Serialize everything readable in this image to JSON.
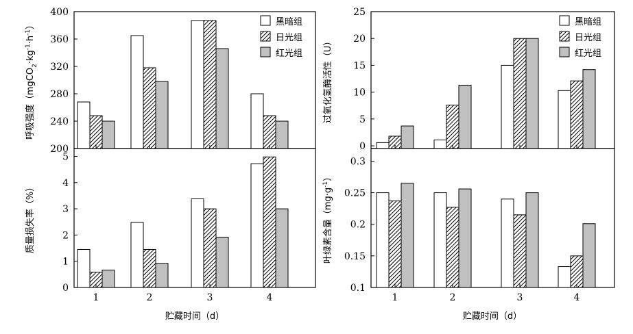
{
  "colors": {
    "dark_group": "#ffffff",
    "sunlight_group": "hatched",
    "red_group": "#c0c0c0",
    "axis": "#000000"
  },
  "legend": [
    "黑暗组",
    "日光组",
    "红光组"
  ],
  "shared_xlabel": "贮藏时间（d）",
  "chart_data": [
    {
      "type": "bar",
      "panel": "top-left",
      "categories": [
        "1",
        "2",
        "3",
        "4"
      ],
      "ylabel_main": "呼吸强度（mgCO",
      "ylabel_sub": "2",
      "ylabel_tail": "·kg",
      "ylabel_exp1": "-1",
      "ylabel_mid": "·h",
      "ylabel_exp2": "-1",
      "ylabel_close": "）",
      "ylim": [
        200,
        400
      ],
      "yticks": [
        "200",
        "240",
        "280",
        "320",
        "360",
        "400"
      ],
      "legend_position": "top-right",
      "series": [
        {
          "name": "黑暗组",
          "values": [
            268,
            365,
            387,
            280
          ]
        },
        {
          "name": "日光组",
          "values": [
            248,
            318,
            387,
            248
          ]
        },
        {
          "name": "红光组",
          "values": [
            240,
            298,
            346,
            240
          ]
        }
      ]
    },
    {
      "type": "bar",
      "panel": "top-right",
      "categories": [
        "1",
        "2",
        "3",
        "4"
      ],
      "ylabel": "过氧化氢酶活性（U）",
      "ylim": [
        -0.5,
        25
      ],
      "yticks": [
        "0",
        "5",
        "10",
        "15",
        "20",
        "25"
      ],
      "legend_position": "top-right",
      "series": [
        {
          "name": "黑暗组",
          "values": [
            0.6,
            1.1,
            15,
            10.3
          ]
        },
        {
          "name": "日光组",
          "values": [
            1.8,
            7.6,
            20,
            12.1
          ]
        },
        {
          "name": "红光组",
          "values": [
            3.7,
            11.3,
            20,
            14.2
          ]
        }
      ]
    },
    {
      "type": "bar",
      "panel": "bottom-left",
      "categories": [
        "1",
        "2",
        "3",
        "4"
      ],
      "ylabel": "质量损失率（%）",
      "ylim": [
        0,
        5.3
      ],
      "yticks": [
        "0",
        "1",
        "2",
        "3",
        "4",
        "5"
      ],
      "series": [
        {
          "name": "黑暗组",
          "values": [
            1.45,
            2.48,
            3.38,
            4.72
          ]
        },
        {
          "name": "日光组",
          "values": [
            0.58,
            1.45,
            3.0,
            4.98
          ]
        },
        {
          "name": "红光组",
          "values": [
            0.66,
            0.92,
            1.92,
            3.0
          ]
        }
      ]
    },
    {
      "type": "bar",
      "panel": "bottom-right",
      "categories": [
        "1",
        "2",
        "3",
        "4"
      ],
      "ylabel": "叶绿素含量（mg·g",
      "ylabel_exp": "-1",
      "ylabel_close": "）",
      "ylim": [
        0.1,
        0.32
      ],
      "yticks": [
        "0.1",
        "0.15",
        "0.2",
        "0.25",
        "0.3"
      ],
      "series": [
        {
          "name": "黑暗组",
          "values": [
            0.25,
            0.25,
            0.24,
            0.133
          ]
        },
        {
          "name": "日光组",
          "values": [
            0.237,
            0.227,
            0.215,
            0.15
          ]
        },
        {
          "name": "红光组",
          "values": [
            0.265,
            0.256,
            0.25,
            0.201
          ]
        }
      ]
    }
  ]
}
